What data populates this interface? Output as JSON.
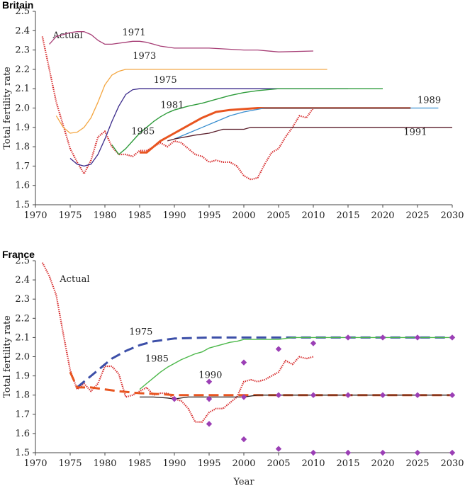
{
  "chart_data": [
    {
      "type": "line",
      "title": "Britain",
      "xlabel": "",
      "ylabel": "Total fertility rate",
      "xlim": [
        1970,
        2030
      ],
      "ylim": [
        1.5,
        2.5
      ],
      "xticks": [
        1970,
        1975,
        1980,
        1985,
        1990,
        1995,
        2000,
        2005,
        2010,
        2015,
        2020,
        2025,
        2030
      ],
      "yticks": [
        "1.5",
        "1.6",
        "1.7",
        "1.8",
        "1.9",
        "2.0",
        "2.1",
        "2.2",
        "2.3",
        "2.4",
        "2.5"
      ],
      "series": [
        {
          "name": "Actual",
          "color": "#d62728",
          "style": "dotted",
          "width": 2.2,
          "label_xy": [
            1972.5,
            2.36
          ],
          "x": [
            1971,
            1972,
            1973,
            1974,
            1975,
            1976,
            1977,
            1978,
            1979,
            1980,
            1981,
            1982,
            1983,
            1984,
            1985,
            1986,
            1987,
            1988,
            1989,
            1990,
            1991,
            1992,
            1993,
            1994,
            1995,
            1996,
            1997,
            1998,
            1999,
            2000,
            2001,
            2002,
            2003,
            2004,
            2005,
            2006,
            2007,
            2008,
            2009,
            2010
          ],
          "y": [
            2.37,
            2.2,
            2.03,
            1.91,
            1.79,
            1.72,
            1.66,
            1.73,
            1.85,
            1.88,
            1.8,
            1.76,
            1.76,
            1.75,
            1.78,
            1.78,
            1.8,
            1.82,
            1.8,
            1.83,
            1.82,
            1.79,
            1.76,
            1.75,
            1.72,
            1.73,
            1.72,
            1.72,
            1.7,
            1.65,
            1.63,
            1.64,
            1.71,
            1.77,
            1.79,
            1.85,
            1.9,
            1.96,
            1.95,
            2.0
          ]
        },
        {
          "name": "1971",
          "color": "#a63d75",
          "style": "solid",
          "width": 1.3,
          "label_xy": [
            1982.5,
            2.375
          ],
          "x": [
            1972,
            1973,
            1974,
            1975,
            1976,
            1977,
            1978,
            1979,
            1980,
            1981,
            1982,
            1983,
            1984,
            1985,
            1986,
            1987,
            1988,
            1989,
            1990,
            1995,
            2000,
            2002,
            2005,
            2010
          ],
          "y": [
            2.33,
            2.37,
            2.38,
            2.39,
            2.395,
            2.395,
            2.38,
            2.35,
            2.33,
            2.33,
            2.335,
            2.34,
            2.345,
            2.345,
            2.34,
            2.33,
            2.32,
            2.315,
            2.31,
            2.31,
            2.3,
            2.3,
            2.29,
            2.295
          ]
        },
        {
          "name": "1973",
          "color": "#f4a640",
          "style": "solid",
          "width": 1.3,
          "label_xy": [
            1984,
            2.255
          ],
          "x": [
            1973,
            1974,
            1975,
            1976,
            1977,
            1978,
            1979,
            1980,
            1981,
            1982,
            1983,
            1984,
            1985,
            1990,
            2000,
            2012
          ],
          "y": [
            1.96,
            1.9,
            1.87,
            1.875,
            1.9,
            1.95,
            2.03,
            2.12,
            2.17,
            2.19,
            2.2,
            2.2,
            2.2,
            2.2,
            2.2,
            2.2
          ]
        },
        {
          "name": "1975",
          "color": "#3a2a8a",
          "style": "solid",
          "width": 1.3,
          "label_xy": [
            1987,
            2.13
          ],
          "x": [
            1975,
            1976,
            1977,
            1978,
            1979,
            1980,
            1981,
            1982,
            1983,
            1984,
            1985,
            1990,
            2000,
            2010,
            2015
          ],
          "y": [
            1.74,
            1.71,
            1.7,
            1.71,
            1.76,
            1.84,
            1.93,
            2.01,
            2.07,
            2.095,
            2.1,
            2.1,
            2.1,
            2.1,
            2.1
          ]
        },
        {
          "name": "1981",
          "color": "#2e9c3b",
          "style": "solid",
          "width": 1.4,
          "label_xy": [
            1988,
            2.0
          ],
          "x": [
            1981,
            1982,
            1983,
            1984,
            1985,
            1986,
            1987,
            1988,
            1989,
            1990,
            1992,
            1994,
            1996,
            1998,
            2000,
            2002,
            2005,
            2010,
            2020
          ],
          "y": [
            1.81,
            1.76,
            1.79,
            1.83,
            1.87,
            1.9,
            1.93,
            1.955,
            1.975,
            1.99,
            2.01,
            2.025,
            2.045,
            2.065,
            2.08,
            2.09,
            2.1,
            2.1,
            2.1
          ]
        },
        {
          "name": "1985",
          "color": "#e85520",
          "style": "solid",
          "width": 3,
          "label_xy": [
            1983.8,
            1.865
          ],
          "x": [
            1985,
            1986,
            1987,
            1988,
            1990,
            1992,
            1994,
            1996,
            1998,
            2000,
            2002,
            2005,
            2010,
            2024
          ],
          "y": [
            1.77,
            1.77,
            1.8,
            1.83,
            1.87,
            1.91,
            1.95,
            1.98,
            1.99,
            1.995,
            2.0,
            2.0,
            2.0,
            2.0
          ]
        },
        {
          "name": "1989",
          "color": "#3a8fd0",
          "style": "solid",
          "width": 1.3,
          "label_xy": [
            2025,
            2.025
          ],
          "x": [
            1990,
            1992,
            1994,
            1996,
            1998,
            2000,
            2003,
            2010,
            2028
          ],
          "y": [
            1.84,
            1.87,
            1.9,
            1.93,
            1.96,
            1.98,
            2.0,
            2.0,
            2.0
          ]
        },
        {
          "name": "1991",
          "color": "#5a1d2a",
          "style": "solid",
          "width": 1.3,
          "label_xy": [
            2023,
            1.86
          ],
          "x": [
            1989,
            1990,
            1993,
            1995,
            1997,
            2000,
            2001,
            2002,
            2005,
            2010,
            2030
          ],
          "y": [
            1.83,
            1.84,
            1.86,
            1.87,
            1.89,
            1.89,
            1.9,
            1.9,
            1.9,
            1.9,
            1.9
          ]
        }
      ]
    },
    {
      "type": "line",
      "title": "France",
      "xlabel": "Year",
      "ylabel": "Total fertility rate",
      "xlim": [
        1970,
        2030
      ],
      "ylim": [
        1.5,
        2.5
      ],
      "xticks": [
        1970,
        1975,
        1980,
        1985,
        1990,
        1995,
        2000,
        2005,
        2010,
        2015,
        2020,
        2025,
        2030
      ],
      "yticks": [
        "1.5",
        "1.6",
        "1.7",
        "1.8",
        "1.9",
        "2.0",
        "2.1",
        "2.2",
        "2.3",
        "2.4",
        "2.5"
      ],
      "series": [
        {
          "name": "Actual",
          "color": "#d62728",
          "style": "dotted",
          "width": 2.2,
          "label_xy": [
            1973.5,
            2.39
          ],
          "x": [
            1971,
            1972,
            1973,
            1974,
            1975,
            1976,
            1977,
            1978,
            1979,
            1980,
            1981,
            1982,
            1983,
            1984,
            1985,
            1986,
            1987,
            1988,
            1989,
            1990,
            1991,
            1992,
            1993,
            1994,
            1995,
            1996,
            1997,
            1998,
            1999,
            2000,
            2001,
            2002,
            2003,
            2004,
            2005,
            2006,
            2007,
            2008,
            2009,
            2010
          ],
          "y": [
            2.49,
            2.42,
            2.32,
            2.12,
            1.93,
            1.83,
            1.86,
            1.82,
            1.86,
            1.95,
            1.95,
            1.91,
            1.79,
            1.8,
            1.82,
            1.84,
            1.8,
            1.81,
            1.81,
            1.78,
            1.77,
            1.73,
            1.66,
            1.66,
            1.71,
            1.73,
            1.73,
            1.76,
            1.79,
            1.87,
            1.88,
            1.87,
            1.88,
            1.9,
            1.92,
            1.98,
            1.96,
            2.0,
            1.99,
            2.0
          ]
        },
        {
          "name": "1975",
          "color": "#3c4fa8",
          "style": "dashed",
          "width": 3,
          "label_xy": [
            1983.5,
            2.115
          ],
          "x": [
            1976,
            1977,
            1978,
            1979,
            1980,
            1981,
            1982,
            1983,
            1984,
            1985,
            1986,
            1987,
            1988,
            1989,
            1990,
            1995,
            2000,
            2005,
            2010,
            2020,
            2030
          ],
          "y": [
            1.84,
            1.87,
            1.9,
            1.93,
            1.96,
            1.99,
            2.01,
            2.03,
            2.045,
            2.06,
            2.07,
            2.08,
            2.085,
            2.09,
            2.095,
            2.1,
            2.1,
            2.1,
            2.1,
            2.1,
            2.1
          ]
        },
        {
          "name": "1985",
          "color": "#4cb84a",
          "style": "solid",
          "width": 1.4,
          "label_xy": [
            1985.8,
            1.975
          ],
          "x": [
            1985,
            1986,
            1987,
            1988,
            1989,
            1990,
            1991,
            1992,
            1993,
            1994,
            1995,
            1996,
            1997,
            1998,
            1999,
            2000,
            2001,
            2005,
            2007,
            2010,
            2020,
            2030
          ],
          "y": [
            1.83,
            1.86,
            1.89,
            1.92,
            1.945,
            1.965,
            1.985,
            2.0,
            2.015,
            2.025,
            2.045,
            2.055,
            2.065,
            2.075,
            2.08,
            2.09,
            2.09,
            2.09,
            2.1,
            2.1,
            2.1,
            2.1
          ]
        },
        {
          "name": "",
          "color": "#e85520",
          "style": "dashed",
          "width": 3,
          "label_xy": null,
          "x": [
            1975,
            1976,
            1978,
            1980,
            1982,
            1985,
            1988,
            1990,
            1995,
            2000,
            2010,
            2020,
            2030
          ],
          "y": [
            1.92,
            1.84,
            1.84,
            1.83,
            1.82,
            1.81,
            1.805,
            1.8,
            1.8,
            1.8,
            1.8,
            1.8,
            1.8
          ]
        },
        {
          "name": "1990",
          "color": "#2a1f1f",
          "style": "solid",
          "width": 1.3,
          "label_xy": [
            1993.5,
            1.89
          ],
          "x": [
            1985,
            1987,
            1989,
            1990,
            1992,
            1995,
            2000,
            2002,
            2005,
            2010,
            2030
          ],
          "y": [
            1.79,
            1.79,
            1.785,
            1.78,
            1.79,
            1.79,
            1.79,
            1.8,
            1.8,
            1.8,
            1.8
          ]
        }
      ],
      "markers": {
        "color": "#9b3fb5",
        "points": [
          [
            1990,
            1.78
          ],
          [
            1995,
            1.87
          ],
          [
            1995,
            1.78
          ],
          [
            1995,
            1.65
          ],
          [
            2000,
            1.97
          ],
          [
            2000,
            1.79
          ],
          [
            2000,
            1.57
          ],
          [
            2005,
            2.04
          ],
          [
            2005,
            1.8
          ],
          [
            2005,
            1.52
          ],
          [
            2010,
            2.07
          ],
          [
            2010,
            1.8
          ],
          [
            2010,
            1.5
          ],
          [
            2015,
            2.1
          ],
          [
            2015,
            1.8
          ],
          [
            2015,
            1.5
          ],
          [
            2020,
            2.1
          ],
          [
            2020,
            1.8
          ],
          [
            2020,
            1.5
          ],
          [
            2025,
            2.1
          ],
          [
            2025,
            1.8
          ],
          [
            2025,
            1.5
          ],
          [
            2030,
            2.1
          ],
          [
            2030,
            1.8
          ],
          [
            2030,
            1.5
          ]
        ]
      }
    }
  ]
}
